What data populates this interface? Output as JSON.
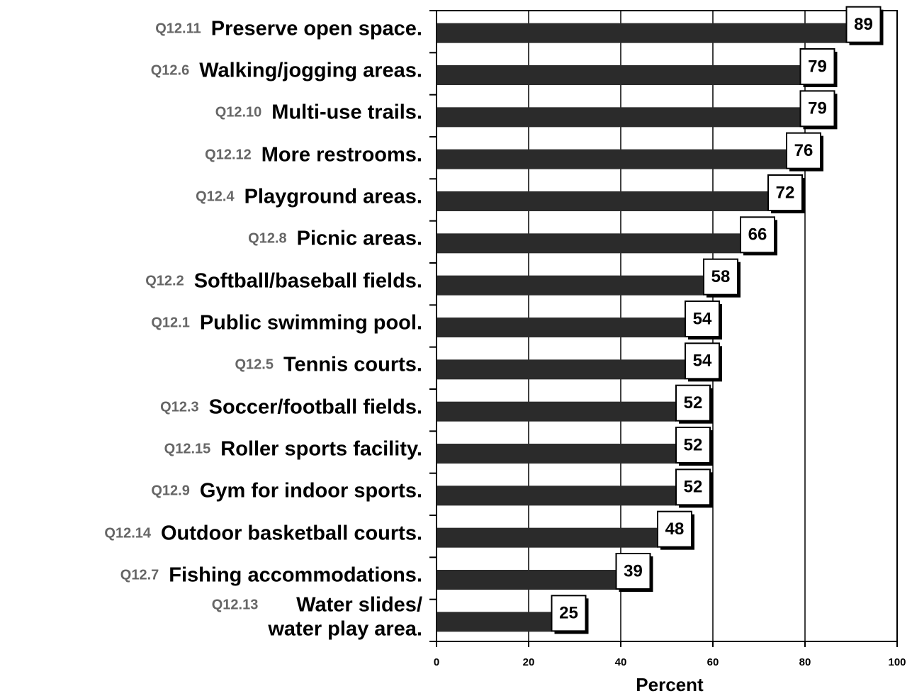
{
  "chart_data": {
    "type": "barh",
    "codes": [
      "Q12.11",
      "Q12.6",
      "Q12.10",
      "Q12.12",
      "Q12.4",
      "Q12.8",
      "Q12.2",
      "Q12.1",
      "Q12.5",
      "Q12.3",
      "Q12.15",
      "Q12.9",
      "Q12.14",
      "Q12.7",
      "Q12.13"
    ],
    "categories": [
      "Preserve open space.",
      "Walking/jogging areas.",
      "Multi-use trails.",
      "More restrooms.",
      "Playground areas.",
      "Picnic areas.",
      "Softball/baseball fields.",
      "Public swimming pool.",
      "Tennis courts.",
      "Soccer/football fields.",
      "Roller sports facility.",
      "Gym for indoor sports.",
      "Outdoor basketball courts.",
      "Fishing accommodations.",
      "Water slides/\nwater play area."
    ],
    "values": [
      89,
      79,
      79,
      76,
      72,
      66,
      58,
      54,
      54,
      52,
      52,
      52,
      48,
      39,
      25
    ],
    "color": "#2b2b2b",
    "xlabel": "Percent",
    "xlim": [
      0,
      100
    ],
    "xticks": [
      0,
      20,
      40,
      60,
      80,
      100
    ],
    "grid": true
  }
}
